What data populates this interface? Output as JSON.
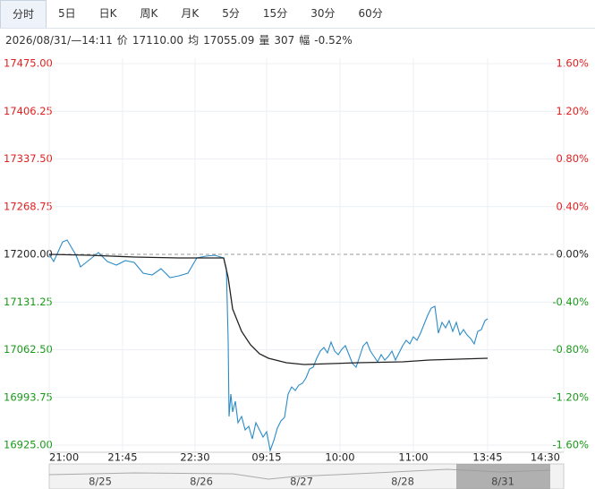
{
  "header": {
    "tabs": [
      "分时",
      "5日",
      "日K",
      "周K",
      "月K",
      "5分",
      "15分",
      "30分",
      "60分"
    ],
    "active_tab": 0
  },
  "info": {
    "datetime": "2026/08/31/—14:11",
    "fields": [
      {
        "label": "价",
        "value": "17110.00"
      },
      {
        "label": "均",
        "value": "17055.09"
      },
      {
        "label": "量",
        "value": "307"
      },
      {
        "label": "幅",
        "value": "-0.52%"
      }
    ]
  },
  "chart_data": {
    "type": "line",
    "reference_line": 17200,
    "ylim": [
      16925,
      17475
    ],
    "yticks": [
      {
        "value": 17475,
        "label": "17475.00"
      },
      {
        "value": 17406.25,
        "label": "17406.25"
      },
      {
        "value": 17337.5,
        "label": "17337.50"
      },
      {
        "value": 17268.75,
        "label": "17268.75"
      },
      {
        "value": 17200,
        "label": "17200.00"
      },
      {
        "value": 17131.25,
        "label": "17131.25"
      },
      {
        "value": 17062.5,
        "label": "17062.50"
      },
      {
        "value": 16993.75,
        "label": "16993.75"
      },
      {
        "value": 16925,
        "label": "16925.00"
      }
    ],
    "y2lim": [
      -1.6,
      1.6
    ],
    "y2ticks": [
      {
        "value": 1.6,
        "label": "1.60%"
      },
      {
        "value": 1.2,
        "label": "1.20%"
      },
      {
        "value": 0.8,
        "label": "0.80%"
      },
      {
        "value": 0.4,
        "label": "0.40%"
      },
      {
        "value": 0,
        "label": "0.00%"
      },
      {
        "value": -0.4,
        "label": "-0.40%"
      },
      {
        "value": -0.8,
        "label": "-0.80%"
      },
      {
        "value": -1.2,
        "label": "-1.20%"
      },
      {
        "value": -1.6,
        "label": "-1.60%"
      }
    ],
    "xlim": [
      0,
      575
    ],
    "xticks": [
      {
        "value": 0,
        "label": "21:00"
      },
      {
        "value": 82,
        "label": "21:45"
      },
      {
        "value": 163,
        "label": "22:30"
      },
      {
        "value": 243,
        "label": "09:15"
      },
      {
        "value": 325,
        "label": "10:00"
      },
      {
        "value": 407,
        "label": "11:00"
      },
      {
        "value": 490,
        "label": "13:45"
      },
      {
        "value": 575,
        "label": "14:30"
      }
    ],
    "series": [
      {
        "color": "#2a8bc8",
        "x": [
          0,
          5,
          15,
          20,
          30,
          35,
          45,
          55,
          65,
          75,
          85,
          95,
          105,
          115,
          125,
          135,
          145,
          155,
          165,
          175,
          185,
          195,
          198,
          200,
          201,
          203,
          205,
          208,
          211,
          215,
          219,
          223,
          227,
          231,
          235,
          239,
          243,
          247,
          251,
          255,
          259,
          263,
          267,
          271,
          275,
          279,
          283,
          287,
          291,
          295,
          299,
          303,
          307,
          311,
          315,
          319,
          323,
          327,
          331,
          335,
          339,
          343,
          347,
          351,
          355,
          359,
          363,
          367,
          371,
          375,
          379,
          383,
          387,
          391,
          395,
          399,
          403,
          407,
          411,
          415,
          419,
          423,
          427,
          431,
          435,
          439,
          443,
          447,
          451,
          455,
          459,
          463,
          467,
          471,
          475,
          479,
          483,
          487,
          490
        ],
        "values": [
          17200,
          17189.7,
          17218.1,
          17220.7,
          17198.7,
          17181.9,
          17192.3,
          17202.6,
          17189.7,
          17184.5,
          17191.0,
          17188.4,
          17172.9,
          17170.3,
          17179.3,
          17166.4,
          17169.0,
          17172.9,
          17194.8,
          17197.4,
          17198.7,
          17194.8,
          17179.3,
          17076.1,
          16966.3,
          16998.6,
          16972.8,
          16988.3,
          16957.3,
          16966.3,
          16947.0,
          16952.1,
          16934.1,
          16957.3,
          16947.0,
          16936.6,
          16944.4,
          16917.3,
          16931.5,
          16949.5,
          16959.9,
          16965.0,
          16998.6,
          17008.9,
          17003.8,
          17011.5,
          17014.1,
          17021.8,
          17034.8,
          17037.3,
          17050.2,
          17060.6,
          17065.7,
          17058.0,
          17073.5,
          17060.6,
          17055.4,
          17063.2,
          17068.3,
          17055.4,
          17042.5,
          17037.3,
          17052.8,
          17068.3,
          17073.5,
          17060.6,
          17052.8,
          17045.1,
          17055.4,
          17047.7,
          17052.8,
          17060.6,
          17047.7,
          17058.0,
          17068.3,
          17076.1,
          17070.9,
          17081.2,
          17076.1,
          17086.4,
          17099.3,
          17112.2,
          17122.5,
          17125.1,
          17086.4,
          17101.9,
          17094.1,
          17104.5,
          17089.0,
          17101.9,
          17083.8,
          17091.6,
          17083.8,
          17078.6,
          17070.9,
          17089.0,
          17091.6,
          17104.5,
          17107.0
        ]
      },
      {
        "color": "#222222",
        "x": [
          0,
          45,
          95,
          145,
          195,
          200,
          205,
          215,
          225,
          235,
          245,
          265,
          285,
          315,
          345,
          395,
          425,
          490
        ],
        "values": [
          17200,
          17198.7,
          17196.1,
          17194.8,
          17194.8,
          17166.4,
          17121.2,
          17089.0,
          17069.6,
          17056.7,
          17050.2,
          17043.8,
          17041.2,
          17042.5,
          17043.8,
          17045.1,
          17047.7,
          17050.2
        ]
      }
    ]
  },
  "navigator": {
    "dates": [
      "8/25",
      "8/26",
      "8/27",
      "8/28",
      "8/31"
    ]
  }
}
